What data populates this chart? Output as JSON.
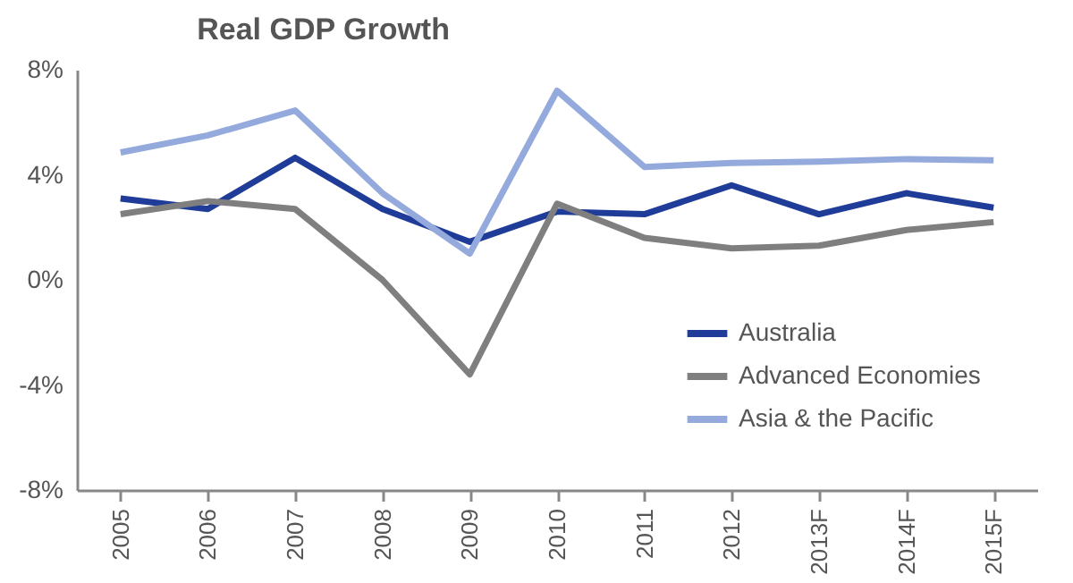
{
  "chart_data": {
    "type": "line",
    "title": "Real GDP Growth",
    "categories": [
      "2005",
      "2006",
      "2007",
      "2008",
      "2009",
      "2010",
      "2011",
      "2012",
      "2013F",
      "2014F",
      "2015F"
    ],
    "series": [
      {
        "name": "Australia",
        "color": "#1f3c99",
        "values": [
          3.1,
          2.7,
          4.65,
          2.7,
          1.45,
          2.6,
          2.5,
          3.6,
          2.5,
          3.3,
          2.75
        ]
      },
      {
        "name": "Advanced Economies",
        "color": "#7f7f7f",
        "values": [
          2.5,
          3.0,
          2.7,
          0,
          -3.6,
          2.9,
          1.6,
          1.2,
          1.3,
          1.9,
          2.2
        ]
      },
      {
        "name": "Asia & the Pacific",
        "color": "#94a9dc",
        "values": [
          4.85,
          5.5,
          6.45,
          3.3,
          1.0,
          7.2,
          4.3,
          4.45,
          4.5,
          4.6,
          4.55
        ]
      }
    ],
    "ylim": [
      -8,
      8
    ],
    "yticks": [
      {
        "value": -8,
        "label": "-8%"
      },
      {
        "value": -4,
        "label": "-4%"
      },
      {
        "value": 0,
        "label": "0%"
      },
      {
        "value": 4,
        "label": "4%"
      },
      {
        "value": 8,
        "label": "8%"
      }
    ],
    "grid": false,
    "legend": "bottom right",
    "line_style": "solid",
    "marker": "none"
  }
}
